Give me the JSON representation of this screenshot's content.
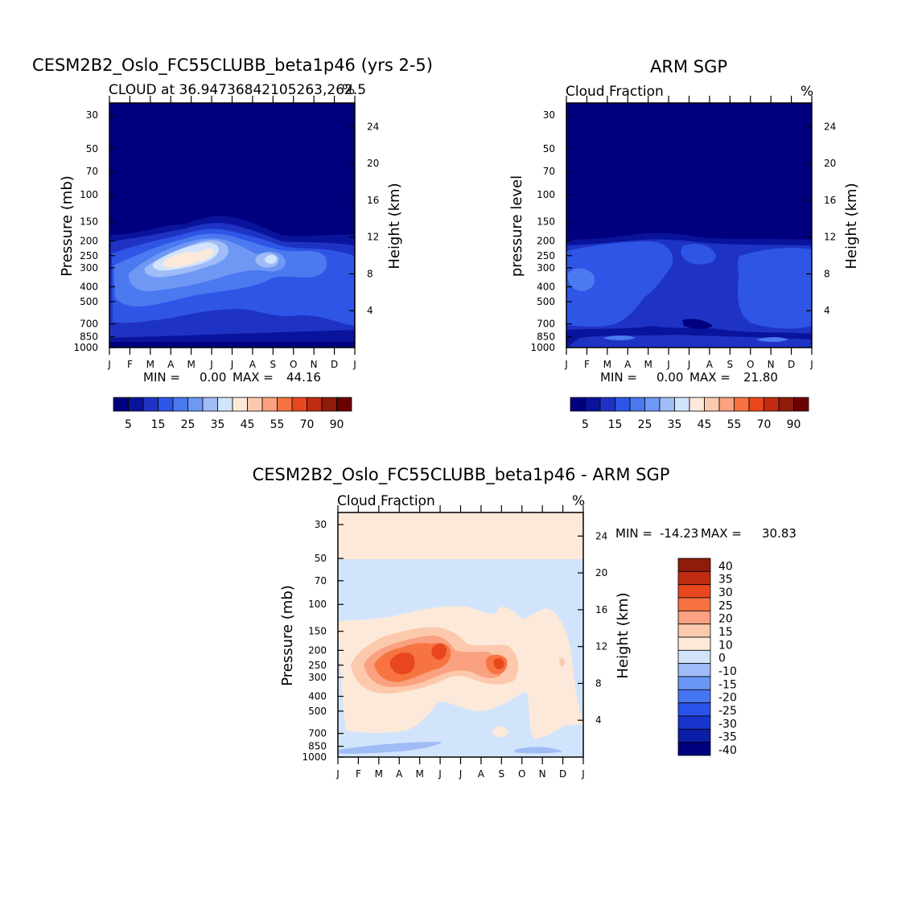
{
  "colors": {
    "cloud_scale": [
      "#00007f",
      "#0a139b",
      "#1e33c4",
      "#2e55e6",
      "#4a79f0",
      "#6f98f5",
      "#a0bcf7",
      "#d2e4fb",
      "#fde9d9",
      "#fcc9ad",
      "#f9a180",
      "#f77440",
      "#e8471d",
      "#c12b0f",
      "#8f1b0b",
      "#6b0000"
    ],
    "diff_scale": [
      "#00007f",
      "#0a1ea6",
      "#1734cc",
      "#2a52ea",
      "#4576f2",
      "#6b97f6",
      "#9fbcf8",
      "#d2e4fb",
      "#fde9d9",
      "#fcc9ad",
      "#f9a180",
      "#f77440",
      "#e8471d",
      "#c12b0f",
      "#8f1b0b"
    ]
  },
  "chart_data": [
    {
      "type": "heatmap",
      "title": "CESM2B2_Oslo_FC55CLUBB_beta1p46 (yrs 2-5)",
      "subtitle_left": "CLOUD at 36.94736842105263,262.5",
      "subtitle_right": "%",
      "ylabel": "Pressure (mb)",
      "ylabel_right": "Height (km)",
      "x_ticks": [
        "J",
        "F",
        "M",
        "A",
        "M",
        "J",
        "J",
        "A",
        "S",
        "O",
        "N",
        "D",
        "J"
      ],
      "y_ticks": [
        "30",
        "50",
        "70",
        "100",
        "150",
        "200",
        "250",
        "300",
        "400",
        "500",
        "700",
        "850",
        "1000"
      ],
      "y_right_ticks": [
        "24",
        "20",
        "16",
        "12",
        "8",
        "4"
      ],
      "min_label": "MIN =",
      "min_value": "0.00",
      "max_label": "MAX =",
      "max_value": "44.16",
      "colorbar_labels": [
        "5",
        "15",
        "25",
        "35",
        "45",
        "55",
        "70",
        "90"
      ]
    },
    {
      "type": "heatmap",
      "title": "ARM SGP",
      "subtitle_left": "Cloud Fraction",
      "subtitle_right": "%",
      "ylabel": "pressure level",
      "ylabel_right": "Height (km)",
      "x_ticks": [
        "J",
        "F",
        "M",
        "A",
        "M",
        "J",
        "J",
        "A",
        "S",
        "O",
        "N",
        "D",
        "J"
      ],
      "y_ticks": [
        "30",
        "50",
        "70",
        "100",
        "150",
        "200",
        "250",
        "300",
        "400",
        "500",
        "700",
        "850",
        "1000"
      ],
      "y_right_ticks": [
        "24",
        "20",
        "16",
        "12",
        "8",
        "4"
      ],
      "min_label": "MIN =",
      "min_value": "0.00",
      "max_label": "MAX =",
      "max_value": "21.80",
      "colorbar_labels": [
        "5",
        "15",
        "25",
        "35",
        "45",
        "55",
        "70",
        "90"
      ]
    },
    {
      "type": "heatmap",
      "title": "CESM2B2_Oslo_FC55CLUBB_beta1p46 - ARM SGP",
      "subtitle_left": "Cloud Fraction",
      "subtitle_right": "%",
      "ylabel": "Pressure (mb)",
      "ylabel_right": "Height (km)",
      "x_ticks": [
        "J",
        "F",
        "M",
        "A",
        "M",
        "J",
        "J",
        "A",
        "S",
        "O",
        "N",
        "D",
        "J"
      ],
      "y_ticks": [
        "30",
        "50",
        "70",
        "100",
        "150",
        "200",
        "250",
        "300",
        "400",
        "500",
        "700",
        "850",
        "1000"
      ],
      "y_right_ticks": [
        "24",
        "20",
        "16",
        "12",
        "8",
        "4"
      ],
      "min_label": "MIN =",
      "min_value": "-14.23",
      "max_label": "MAX =",
      "max_value": "30.83",
      "colorbar_labels": [
        "40",
        "35",
        "30",
        "25",
        "20",
        "15",
        "10",
        "0",
        "-10",
        "-15",
        "-20",
        "-25",
        "-30",
        "-35",
        "-40"
      ]
    }
  ]
}
